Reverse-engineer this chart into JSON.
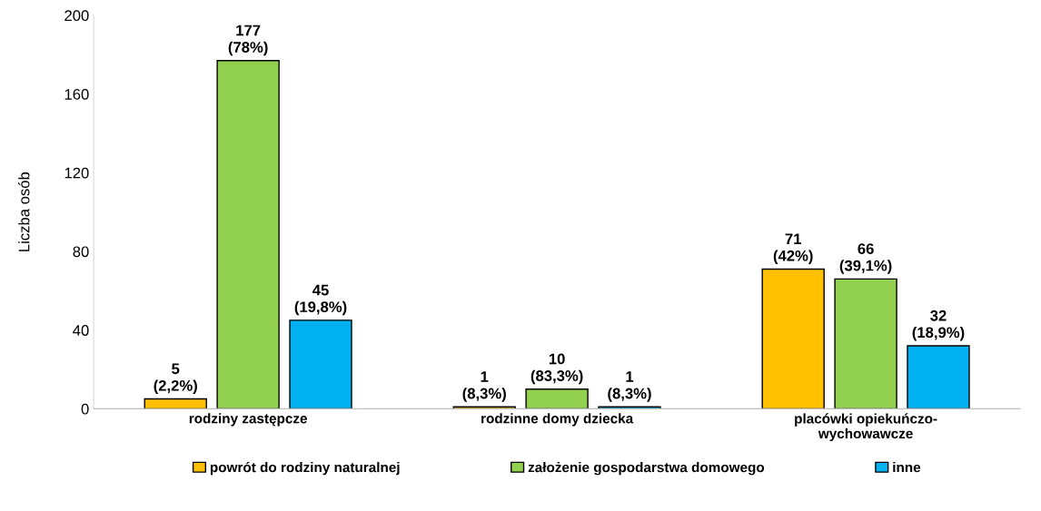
{
  "chart_data": {
    "type": "bar",
    "ylabel": "Liczba osób",
    "categories": [
      "rodziny zastępcze",
      "rodzinne domy dziecka",
      "placówki opiekuńczo-\nwychowawcze"
    ],
    "series": [
      {
        "name": "powrót do rodziny naturalnej",
        "color": "#ffc000",
        "values": [
          5,
          1,
          71
        ],
        "value_labels": [
          "5\n(2,2%)",
          "1\n(8,3%)",
          "71\n(42%)"
        ]
      },
      {
        "name": "założenie gospodarstwa domowego",
        "color": "#92d050",
        "values": [
          177,
          10,
          66
        ],
        "value_labels": [
          "177\n(78%)",
          "10\n(83,3%)",
          "66\n(39,1%)"
        ]
      },
      {
        "name": "inne",
        "color": "#00b0f0",
        "values": [
          45,
          1,
          32
        ],
        "value_labels": [
          "45\n(19,8%)",
          "1\n(8,3%)",
          "32\n(18,9%)"
        ]
      }
    ],
    "ylim": [
      0,
      200
    ],
    "yticks": [
      0,
      40,
      80,
      120,
      160,
      200
    ],
    "grid": false,
    "legend": "bottom"
  }
}
